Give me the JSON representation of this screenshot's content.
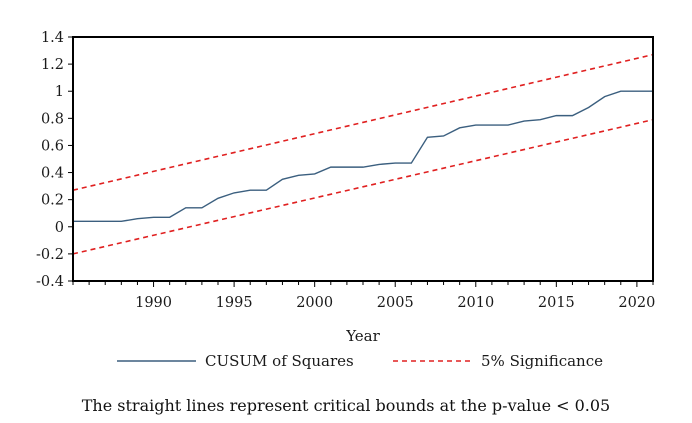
{
  "chart_data": {
    "type": "line",
    "xlabel": "Year",
    "ylabel": "",
    "xlim": [
      1985,
      2021
    ],
    "ylim": [
      -0.4,
      1.4
    ],
    "yticks": [
      "1.4",
      "1.2",
      "1",
      "0.8",
      "0.6",
      "0.4",
      "0.2",
      "0",
      "-0.2",
      "-0.4"
    ],
    "xticks": [
      "1990",
      "1995",
      "2000",
      "2005",
      "2010",
      "2015",
      "2020"
    ],
    "grid": false,
    "legend_position": "bottom",
    "series": [
      {
        "name": "CUSUM of Squares",
        "color": "#3b5f7f",
        "style": "solid",
        "points": [
          [
            1985,
            0.04
          ],
          [
            1986,
            0.04
          ],
          [
            1987,
            0.04
          ],
          [
            1988,
            0.04
          ],
          [
            1989,
            0.06
          ],
          [
            1990,
            0.07
          ],
          [
            1991,
            0.07
          ],
          [
            1992,
            0.14
          ],
          [
            1993,
            0.14
          ],
          [
            1994,
            0.21
          ],
          [
            1995,
            0.25
          ],
          [
            1996,
            0.27
          ],
          [
            1997,
            0.27
          ],
          [
            1998,
            0.35
          ],
          [
            1999,
            0.38
          ],
          [
            2000,
            0.39
          ],
          [
            2001,
            0.44
          ],
          [
            2002,
            0.44
          ],
          [
            2003,
            0.44
          ],
          [
            2004,
            0.46
          ],
          [
            2005,
            0.47
          ],
          [
            2006,
            0.47
          ],
          [
            2007,
            0.66
          ],
          [
            2008,
            0.67
          ],
          [
            2009,
            0.73
          ],
          [
            2010,
            0.75
          ],
          [
            2011,
            0.75
          ],
          [
            2012,
            0.75
          ],
          [
            2013,
            0.78
          ],
          [
            2014,
            0.79
          ],
          [
            2015,
            0.82
          ],
          [
            2016,
            0.82
          ],
          [
            2017,
            0.88
          ],
          [
            2018,
            0.96
          ],
          [
            2019,
            1.0
          ],
          [
            2020,
            1.0
          ],
          [
            2021,
            1.0
          ]
        ]
      },
      {
        "name": "5% Significance",
        "color": "#e02020",
        "style": "dashed",
        "points": [
          [
            1985,
            0.27
          ],
          [
            2021,
            1.27
          ]
        ]
      },
      {
        "name": "",
        "color": "#e02020",
        "style": "dashed",
        "points": [
          [
            1985,
            -0.2
          ],
          [
            2021,
            0.79
          ]
        ]
      }
    ]
  },
  "note": "The straight lines represent critical bounds at the p-value < 0.05"
}
